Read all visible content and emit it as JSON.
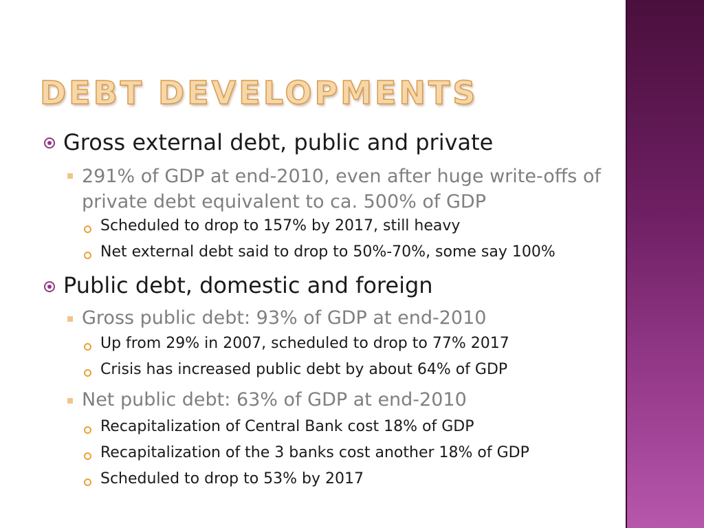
{
  "slide": {
    "title": "Debt developments",
    "sections": [
      {
        "text": "Gross external debt, public and private",
        "sub": "291% of GDP at end-2010, even after huge write-offs of private debt equivalent to ca. 500% of GDP",
        "points": [
          "Scheduled to drop to 157% by 2017, still heavy",
          "Net external debt said to drop to 50%-70%, some say 100%"
        ]
      },
      {
        "text": "Public debt, domestic and foreign",
        "subs": [
          {
            "text": "Gross public debt: 93% of GDP at end-2010",
            "points": [
              "Up from 29% in 2007, scheduled to drop to 77% 2017",
              "Crisis has increased public debt by about 64% of GDP"
            ]
          },
          {
            "text": "Net public debt: 63% of GDP at end-2010",
            "points": [
              "Recapitalization of Central Bank cost 18% of GDP",
              "Recapitalization of the 3 banks cost another 18% of GDP",
              "Scheduled to drop to 53% by 2017"
            ]
          }
        ]
      }
    ]
  },
  "colors": {
    "title": "#f6d7a9",
    "sidebar": "#6e1f63",
    "bullet_level1": "#8e3a84",
    "bullet_level2": "#f0c48a",
    "bullet_level3": "#e8a33a"
  }
}
